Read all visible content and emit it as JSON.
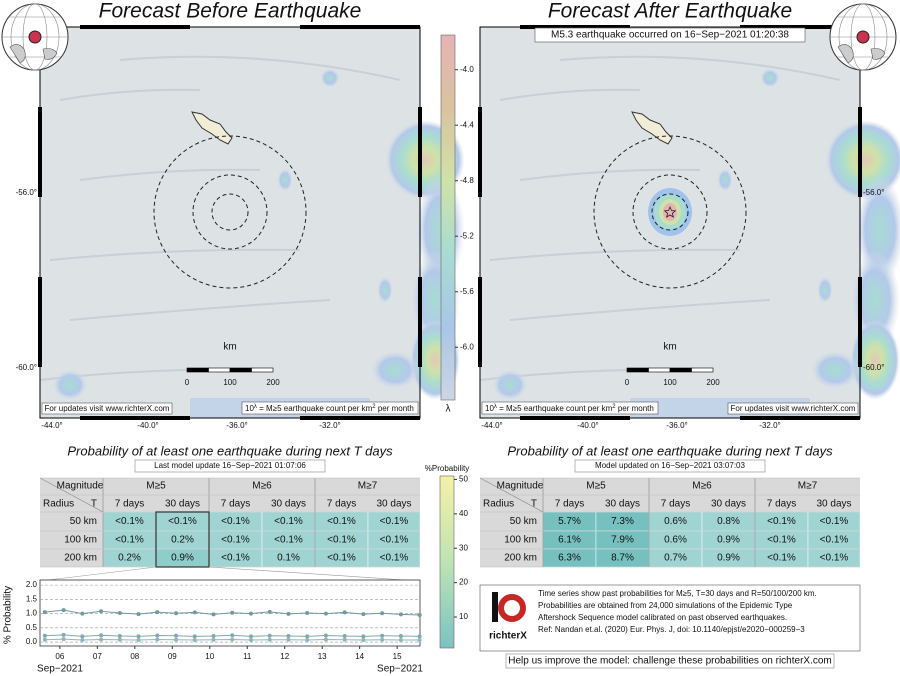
{
  "panels": [
    {
      "title": "Forecast Before Earthquake",
      "map": {
        "xticks": [
          "-44.0°",
          "-40.0°",
          "-36.0°",
          "-32.0°"
        ],
        "yticks": [
          "-56.0°",
          "-60.0°"
        ],
        "scale_unit": "km",
        "scale_ticks": [
          "0",
          "100",
          "200"
        ],
        "updates_note": "For updates visit www.richterX.com",
        "legend_parts": [
          "10",
          "λ",
          " = M≥5 earthquake count per km",
          "2",
          " per month"
        ]
      },
      "probability_title": "Probability of at least one earthquake during next T days",
      "model_note": "Last model update 16−Sep−2021 01:07:06",
      "table": {
        "magnitude_header": "Magnitude",
        "radius_header": "Radius",
        "t_header": "T",
        "magnitudes": [
          "M≥5",
          "M≥6",
          "M≥7"
        ],
        "periods": [
          "7 days",
          "30 days",
          "7 days",
          "30 days",
          "7 days",
          "30 days"
        ],
        "rows": [
          [
            "50 km",
            "<0.1%",
            "<0.1%",
            "<0.1%",
            "<0.1%",
            "<0.1%",
            "<0.1%"
          ],
          [
            "100 km",
            "<0.1%",
            "0.2%",
            "<0.1%",
            "<0.1%",
            "<0.1%",
            "<0.1%"
          ],
          [
            "200 km",
            "0.2%",
            "0.9%",
            "<0.1%",
            "0.1%",
            "<0.1%",
            "<0.1%"
          ]
        ]
      }
    },
    {
      "title": "Forecast After Earthquake",
      "event_note": "M5.3 earthquake occurred on 16−Sep−2021 01:20:38",
      "map": {
        "xticks": [
          "-44.0°",
          "-40.0°",
          "-36.0°",
          "-32.0°"
        ],
        "yticks": [
          "-56.0°",
          "-60.0°"
        ],
        "scale_unit": "km",
        "scale_ticks": [
          "0",
          "100",
          "200"
        ],
        "updates_note": "For updates visit www.richterX.com",
        "legend_parts": [
          "10",
          "λ",
          " = M≥5 earthquake count per km",
          "2",
          " per month"
        ]
      },
      "probability_title": "Probability of at least one earthquake during next T days",
      "model_note": "Model updated on 16−Sep−2021 03:07:03",
      "table": {
        "magnitude_header": "Magnitude",
        "radius_header": "Radius",
        "t_header": "T",
        "magnitudes": [
          "M≥5",
          "M≥6",
          "M≥7"
        ],
        "periods": [
          "7 days",
          "30 days",
          "7 days",
          "30 days",
          "7 days",
          "30 days"
        ],
        "rows": [
          [
            "50 km",
            "5.7%",
            "7.3%",
            "0.6%",
            "0.8%",
            "<0.1%",
            "<0.1%"
          ],
          [
            "100 km",
            "6.1%",
            "7.9%",
            "0.6%",
            "0.9%",
            "<0.1%",
            "<0.1%"
          ],
          [
            "200 km",
            "6.3%",
            "8.7%",
            "0.7%",
            "0.9%",
            "<0.1%",
            "<0.1%"
          ]
        ]
      }
    }
  ],
  "lambda_colorbar": {
    "label": "λ",
    "lim": [
      -6.38,
      -3.75
    ],
    "ticks": [
      {
        "value": -4,
        "label": "-4.0"
      },
      {
        "value": -4.4,
        "label": "-4.4"
      },
      {
        "value": -4.8,
        "label": "-4.8"
      },
      {
        "value": -5.2,
        "label": "-5.2"
      },
      {
        "value": -5.6,
        "label": "-5.6"
      },
      {
        "value": -6,
        "label": "-6.0"
      }
    ]
  },
  "probability_colorbar": {
    "label": "%Probability",
    "lim": [
      1,
      51
    ],
    "ticks": [
      10,
      20,
      30,
      40,
      50
    ]
  },
  "time_series": {
    "ylabel": "% Probability",
    "ylim": [
      -0.14,
      2.18
    ],
    "yticks": [
      {
        "value": 0,
        "label": "0.0"
      },
      {
        "value": 0.5,
        "label": "0.5"
      },
      {
        "value": 1,
        "label": "1.0"
      },
      {
        "value": 1.5,
        "label": "1.5"
      },
      {
        "value": 2,
        "label": "2.0"
      }
    ],
    "xlim": [
      5.47,
      15.61
    ],
    "xticks": [
      {
        "value": 6,
        "label": "06"
      },
      {
        "value": 7,
        "label": "07"
      },
      {
        "value": 8,
        "label": "08"
      },
      {
        "value": 9,
        "label": "09"
      },
      {
        "value": 10,
        "label": "10"
      },
      {
        "value": 11,
        "label": "11"
      },
      {
        "value": 12,
        "label": "12"
      },
      {
        "value": 13,
        "label": "13"
      },
      {
        "value": 14,
        "label": "14"
      },
      {
        "value": 15,
        "label": "15"
      }
    ],
    "month_labels": [
      "Sep−2021",
      "Sep−2021"
    ],
    "x": [
      5.6,
      6.1,
      6.6,
      7.1,
      7.6,
      8.1,
      8.6,
      9.1,
      9.6,
      10.1,
      10.6,
      11.1,
      11.6,
      12.1,
      12.6,
      13.1,
      13.6,
      14.1,
      14.6,
      15.1,
      15.6
    ],
    "series": [
      {
        "color": "#6f9aa3",
        "values": [
          1.05,
          1.12,
          1.0,
          1.08,
          1.02,
          0.98,
          1.05,
          1.01,
          1.04,
          0.97,
          1.03,
          1.0,
          1.06,
          0.99,
          1.02,
          1.0,
          1.04,
          0.98,
          1.01,
          0.97,
          0.95
        ]
      },
      {
        "color": "#7fa9b1",
        "values": [
          0.22,
          0.25,
          0.2,
          0.24,
          0.21,
          0.2,
          0.23,
          0.22,
          0.2,
          0.21,
          0.24,
          0.2,
          0.22,
          0.21,
          0.2,
          0.23,
          0.21,
          0.2,
          0.22,
          0.21,
          0.2
        ]
      },
      {
        "color": "#8fb6bd",
        "values": [
          0.08,
          0.1,
          0.07,
          0.09,
          0.08,
          0.07,
          0.09,
          0.08,
          0.07,
          0.08,
          0.09,
          0.07,
          0.08,
          0.08,
          0.07,
          0.09,
          0.08,
          0.07,
          0.08,
          0.07,
          0.07
        ]
      }
    ]
  },
  "info": {
    "logo": "richterX",
    "lines": [
      "Time series show past probabilities for M≥5, T=30 days and R=50/100/200 km.",
      "Probabilities are obtained from 24,000 simulations of the Epidemic Type",
      "Aftershock Sequence model calibrated on past observed earthquakes.",
      "Ref: Nandan et.al. (2020) Eur. Phys. J, doi: 10.1140/epjst/e2020−000259−3"
    ],
    "help": "Help us improve the model: challenge these probabilities on richterX.com"
  }
}
